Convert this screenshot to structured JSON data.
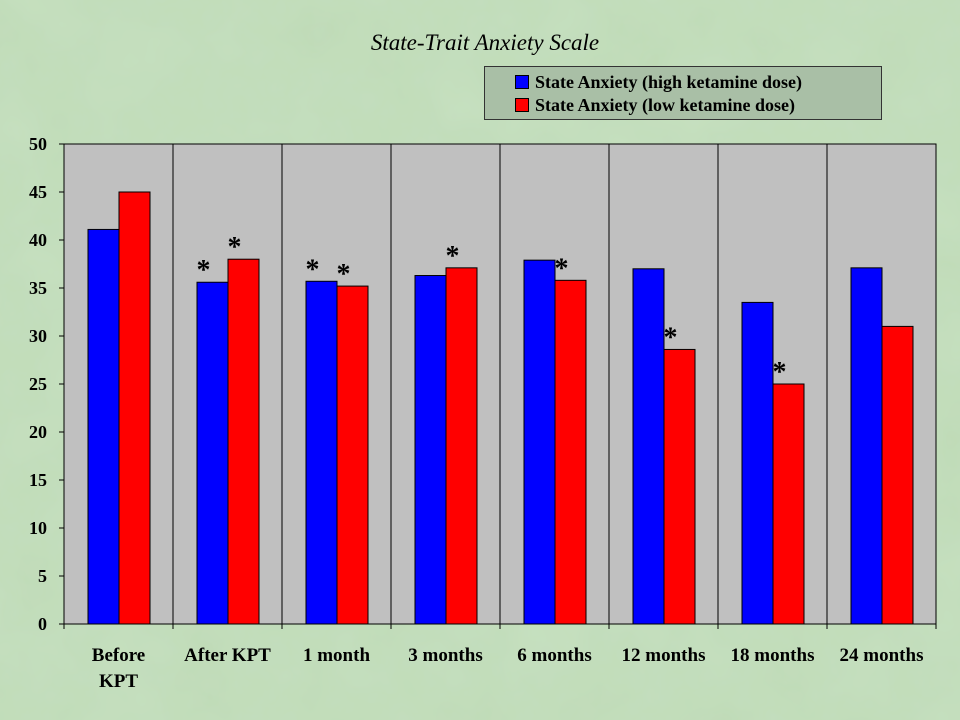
{
  "chart_data": {
    "type": "bar",
    "title": "State-Trait Anxiety Scale",
    "xlabel": "",
    "ylabel": "",
    "categories": [
      "Before KPT",
      "After KPT",
      "1 month",
      "3 months",
      "6 months",
      "12 months",
      "18 months",
      "24 months"
    ],
    "category_lines": [
      [
        "Before",
        "KPT"
      ],
      [
        "After KPT"
      ],
      [
        "1 month"
      ],
      [
        "3 months"
      ],
      [
        "6 months"
      ],
      [
        "12 months"
      ],
      [
        "18 months"
      ],
      [
        "24 months"
      ]
    ],
    "series": [
      {
        "name": "State Anxiety (high ketamine dose)",
        "color": "#0000ff",
        "values": [
          41.1,
          35.6,
          35.7,
          36.3,
          37.9,
          37.0,
          33.5,
          37.1
        ],
        "significant": [
          false,
          true,
          true,
          false,
          false,
          false,
          false,
          false
        ]
      },
      {
        "name": "State Anxiety (low ketamine dose)",
        "color": "#ff0000",
        "values": [
          45.0,
          38.0,
          35.2,
          37.1,
          35.8,
          28.6,
          25.0,
          31.0
        ],
        "significant": [
          false,
          true,
          true,
          true,
          true,
          true,
          true,
          false
        ]
      }
    ],
    "significance_marker": "*",
    "ylim": [
      0,
      50
    ],
    "yticks": [
      0,
      5,
      10,
      15,
      20,
      25,
      30,
      35,
      40,
      45,
      50
    ],
    "grid": "vertical category separators",
    "legend_position": "top-right",
    "plot_background": "#c0c0c0"
  }
}
